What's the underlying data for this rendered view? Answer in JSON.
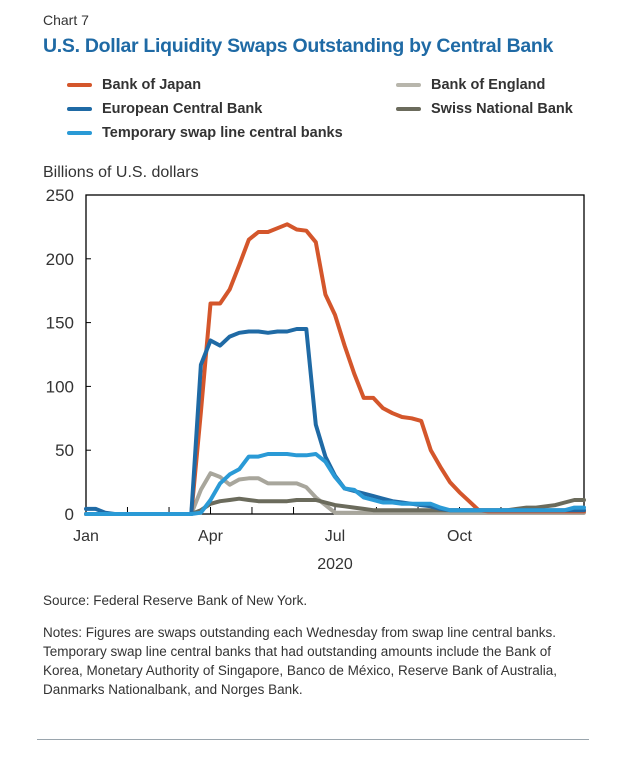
{
  "header": {
    "chart_number": "Chart 7",
    "title": "U.S. Dollar Liquidity Swaps Outstanding by Central Bank"
  },
  "footer": {
    "source": "Source: Federal Reserve Bank of New York.",
    "notes": "Notes: Figures are swaps outstanding each Wednesday from swap line central banks. Temporary swap line central banks that had outstanding amounts include the Bank of Korea, Monetary Authority of Singapore, Banco de México, Reserve Bank of Australia, Danmarks Nationalbank, and Norges Bank."
  },
  "chart_data": {
    "type": "line",
    "title": "U.S. Dollar Liquidity Swaps Outstanding by Central Bank",
    "ylabel": "Billions of U.S. dollars",
    "xlabel": "2020",
    "ylim": [
      0,
      250
    ],
    "yticks": [
      0,
      50,
      100,
      150,
      200,
      250
    ],
    "xlim_weeks": [
      0,
      52
    ],
    "xtick_labels": [
      {
        "week": 0,
        "label": "Jan"
      },
      {
        "week": 13,
        "label": "Apr"
      },
      {
        "week": 26,
        "label": "Jul"
      },
      {
        "week": 39,
        "label": "Oct"
      }
    ],
    "month_ticks_weeks": [
      4.33,
      8.67,
      13,
      17.33,
      21.67,
      26,
      30.33,
      34.67,
      39,
      43.33,
      47.67
    ],
    "frequency": "weekly (Wednesdays), 2020",
    "grid": false,
    "legend_position": "top",
    "series": [
      {
        "name": "Bank of Japan",
        "color": "#d4562b",
        "values": [
          0,
          0,
          0,
          0,
          0,
          0,
          0,
          0,
          0,
          0,
          0,
          0,
          80,
          165,
          165,
          176,
          195,
          215,
          221,
          221,
          224,
          227,
          223,
          222,
          213,
          172,
          156,
          132,
          110,
          91,
          91,
          83,
          79,
          76,
          75,
          73,
          50,
          37,
          25,
          17,
          10,
          3,
          2,
          2,
          2,
          2,
          2,
          2,
          2,
          2,
          2,
          2,
          2
        ]
      },
      {
        "name": "European Central Bank",
        "color": "#1f6aa5",
        "values": [
          4,
          4,
          1,
          0,
          0,
          0,
          0,
          0,
          0,
          0,
          0,
          0,
          117,
          136,
          132,
          139,
          142,
          143,
          143,
          142,
          143,
          143,
          145,
          145,
          70,
          45,
          30,
          20,
          18,
          16,
          14,
          12,
          10,
          9,
          8,
          7,
          6,
          4,
          3,
          3,
          3,
          3,
          3,
          3,
          3,
          3,
          3,
          3,
          3,
          3,
          3,
          3,
          3
        ]
      },
      {
        "name": "Temporary swap line central banks",
        "color": "#2a9ad6",
        "values": [
          0,
          0,
          0,
          0,
          0,
          0,
          0,
          0,
          0,
          0,
          0,
          0,
          1,
          11,
          24,
          31,
          35,
          45,
          45,
          47,
          47,
          47,
          46,
          46,
          47,
          41,
          29,
          20,
          19,
          13,
          11,
          9,
          9,
          8,
          8,
          8,
          8,
          5,
          3,
          3,
          3,
          3,
          3,
          3,
          3,
          3,
          3,
          3,
          3,
          3,
          3,
          5,
          5
        ]
      },
      {
        "name": "Bank of England",
        "color": "#a8a69c",
        "values": [
          0,
          0,
          0,
          0,
          0,
          0,
          0,
          0,
          0,
          0,
          0,
          0,
          19,
          32,
          29,
          23,
          27,
          28,
          28,
          24,
          24,
          24,
          24,
          21,
          13,
          7,
          1,
          1,
          1,
          1,
          1,
          1,
          1,
          1,
          1,
          1,
          1,
          1,
          1,
          1,
          1,
          1,
          1,
          1,
          1,
          1,
          1,
          1,
          1,
          1,
          1,
          1,
          1
        ]
      },
      {
        "name": "Swiss National Bank",
        "color": "#6b6b5c",
        "values": [
          0,
          0,
          0,
          0,
          0,
          0,
          0,
          0,
          0,
          0,
          0,
          0,
          3,
          8,
          10,
          11,
          12,
          11,
          10,
          10,
          10,
          10,
          11,
          11,
          11,
          9,
          7,
          6,
          5,
          4,
          3,
          3,
          3,
          3,
          3,
          3,
          3,
          3,
          3,
          3,
          3,
          3,
          3,
          3,
          3,
          4,
          5,
          5,
          6,
          7,
          9,
          11,
          11
        ]
      }
    ]
  },
  "legend": [
    {
      "label": "Bank of Japan",
      "color": "#d4562b"
    },
    {
      "label": "European Central Bank",
      "color": "#1f6aa5"
    },
    {
      "label": "Temporary swap line central banks",
      "color": "#2a9ad6"
    },
    {
      "label": "Bank of England",
      "color": "#b8b6ac"
    },
    {
      "label": "Swiss National Bank",
      "color": "#6b6b5c"
    }
  ]
}
